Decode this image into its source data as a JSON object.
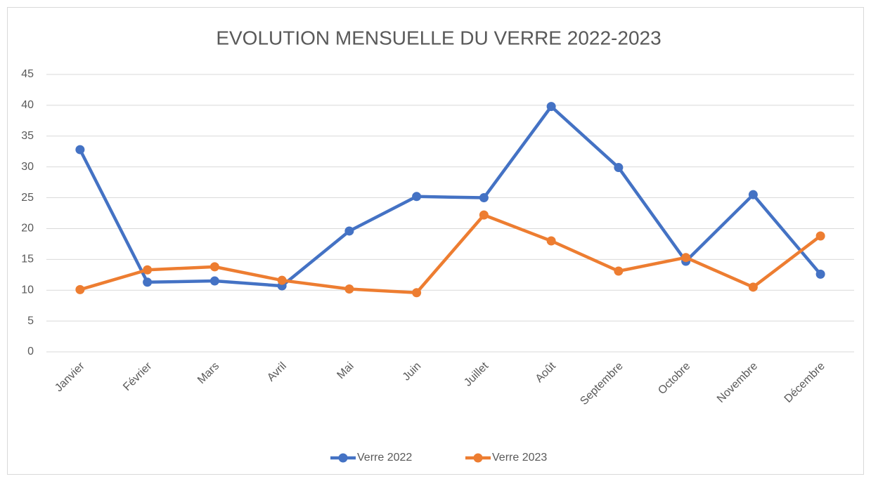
{
  "chart_data": {
    "type": "line",
    "title": "EVOLUTION MENSUELLE DU VERRE 2022-2023",
    "categories": [
      "Janvier",
      "Février",
      "Mars",
      "Avril",
      "Mai",
      "Juin",
      "Juillet",
      "Août",
      "Septembre",
      "Octobre",
      "Novembre",
      "Décembre"
    ],
    "series": [
      {
        "name": "Verre 2022",
        "color": "#4472c4",
        "values": [
          32.8,
          11.3,
          11.5,
          10.7,
          19.6,
          25.2,
          25.0,
          39.8,
          29.9,
          14.7,
          25.5,
          12.6
        ]
      },
      {
        "name": "Verre 2023",
        "color": "#ed7d31",
        "values": [
          10.1,
          13.3,
          13.8,
          11.6,
          10.2,
          9.6,
          22.2,
          18.0,
          13.1,
          15.3,
          10.5,
          18.8
        ]
      }
    ],
    "ylim": [
      0,
      45
    ],
    "yticks": [
      0,
      5,
      10,
      15,
      20,
      25,
      30,
      35,
      40,
      45
    ],
    "grid": true,
    "legend": "bottom"
  }
}
